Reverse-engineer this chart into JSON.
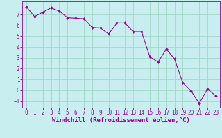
{
  "x": [
    0,
    1,
    2,
    3,
    4,
    5,
    6,
    7,
    8,
    9,
    10,
    11,
    12,
    13,
    14,
    15,
    16,
    17,
    18,
    19,
    20,
    21,
    22,
    23
  ],
  "y": [
    7.7,
    6.8,
    7.2,
    7.6,
    7.3,
    6.7,
    6.65,
    6.6,
    5.8,
    5.75,
    5.2,
    6.2,
    6.2,
    5.4,
    5.4,
    3.1,
    2.6,
    3.8,
    2.9,
    0.7,
    -0.05,
    -1.2,
    0.1,
    -0.5
  ],
  "line_color": "#990099",
  "bg_color": "#c8eef0",
  "grid_color": "#a0d8c8",
  "xlabel": "Windchill (Refroidissement éolien,°C)",
  "xlim": [
    -0.5,
    23.5
  ],
  "ylim": [
    -1.6,
    8.2
  ],
  "yticks": [
    -1,
    0,
    1,
    2,
    3,
    4,
    5,
    6,
    7
  ],
  "xticks": [
    0,
    1,
    2,
    3,
    4,
    5,
    6,
    7,
    8,
    9,
    10,
    11,
    12,
    13,
    14,
    15,
    16,
    17,
    18,
    19,
    20,
    21,
    22,
    23
  ],
  "tick_fontsize": 5.5,
  "xlabel_fontsize": 6.5
}
